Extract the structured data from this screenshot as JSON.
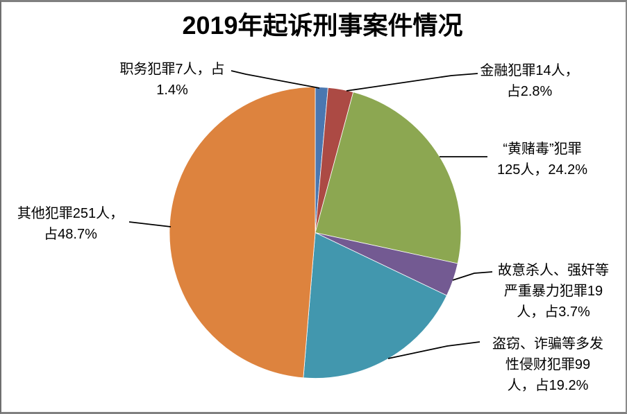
{
  "chart_data": {
    "type": "pie",
    "title": "2019年起诉刑事案件情况",
    "start_angle_deg": 0,
    "direction": "clockwise",
    "legend": "none",
    "label_style": "outside-callouts-with-leader-lines",
    "slices": [
      {
        "label": "职务犯罪",
        "people": 7,
        "percent": 1.4,
        "color": "#4a77b0",
        "callout": [
          "职务犯罪7人，占",
          "1.4%"
        ]
      },
      {
        "label": "金融犯罪",
        "people": 14,
        "percent": 2.8,
        "color": "#ac4a44",
        "callout": [
          "金融犯罪14人，",
          "占2.8%"
        ]
      },
      {
        "label": "“黄赌毒”犯罪",
        "people": 125,
        "percent": 24.2,
        "color": "#8ca751",
        "callout": [
          "“黄赌毒”犯罪",
          "125人，24.2%"
        ]
      },
      {
        "label": "故意杀人、强奸等严重暴力犯罪",
        "people": 19,
        "percent": 3.7,
        "color": "#735a92",
        "callout": [
          "故意杀人、强奸等",
          "严重暴力犯罪19",
          "人，占3.7%"
        ]
      },
      {
        "label": "盗窃、诈骗等多发性侵财犯罪",
        "people": 99,
        "percent": 19.2,
        "color": "#4297ae",
        "callout": [
          "盗窃、诈骗等多发",
          "性侵财犯罪99",
          "人，占19.2%"
        ]
      },
      {
        "label": "其他犯罪",
        "people": 251,
        "percent": 48.7,
        "color": "#dd833e",
        "callout": [
          "其他犯罪251人，",
          "占48.7%"
        ]
      }
    ]
  }
}
